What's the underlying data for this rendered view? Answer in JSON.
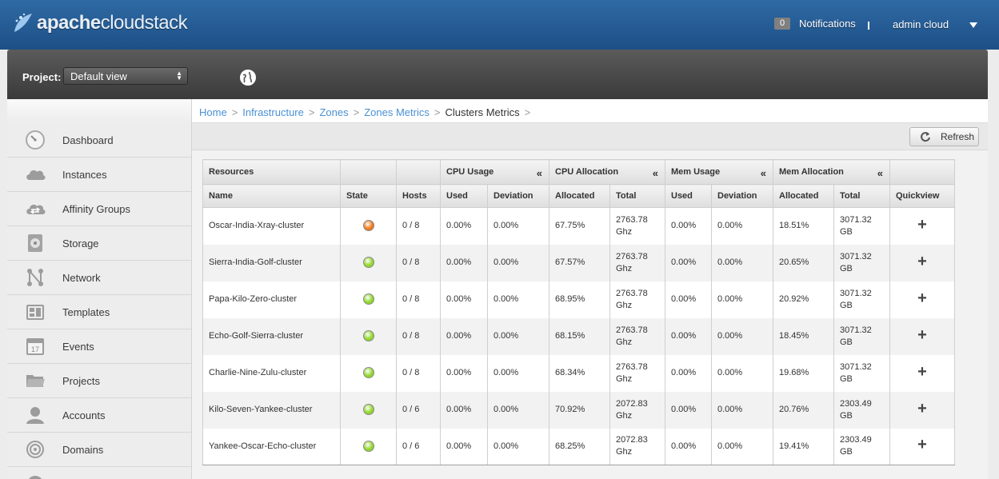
{
  "brand": {
    "logo_text_bold": "apache",
    "logo_text_rest": "cloudstack"
  },
  "header": {
    "notifications_count": "0",
    "notifications_label": "Notifications",
    "user_label": "admin cloud"
  },
  "project": {
    "label": "Project:",
    "selected": "Default view"
  },
  "sidebar": {
    "items": [
      {
        "label": "Dashboard",
        "icon": "dashboard-icon"
      },
      {
        "label": "Instances",
        "icon": "cloud-icon"
      },
      {
        "label": "Affinity Groups",
        "icon": "affinity-cloud-icon"
      },
      {
        "label": "Storage",
        "icon": "disk-icon"
      },
      {
        "label": "Network",
        "icon": "network-icon"
      },
      {
        "label": "Templates",
        "icon": "templates-icon"
      },
      {
        "label": "Events",
        "icon": "calendar-icon"
      },
      {
        "label": "Projects",
        "icon": "folder-icon"
      },
      {
        "label": "Accounts",
        "icon": "user-icon"
      },
      {
        "label": "Domains",
        "icon": "domains-icon"
      }
    ],
    "calendar_day": "17"
  },
  "breadcrumb": {
    "items": [
      "Home",
      "Infrastructure",
      "Zones",
      "Zones Metrics"
    ],
    "current": "Clusters Metrics",
    "separator": ">"
  },
  "toolbar": {
    "refresh_label": "Refresh"
  },
  "table": {
    "group_headers": {
      "resources": "Resources",
      "cpu_usage": "CPU Usage",
      "cpu_allocation": "CPU Allocation",
      "mem_usage": "Mem Usage",
      "mem_allocation": "Mem Allocation",
      "collapse_glyph": "«"
    },
    "columns": [
      "Name",
      "State",
      "Hosts",
      "Used",
      "Deviation",
      "Allocated",
      "Total",
      "Used",
      "Deviation",
      "Allocated",
      "Total",
      "Quickview"
    ],
    "state_colors": {
      "alert": "#f07818",
      "ok": "#8fd62a"
    },
    "rows": [
      {
        "name": "Oscar-India-Xray-cluster",
        "state": "alert",
        "hosts": "0 / 8",
        "cpu_used": "0.00%",
        "cpu_dev": "0.00%",
        "cpu_alloc": "67.75%",
        "cpu_total_1": "2763.78",
        "cpu_total_2": "Ghz",
        "mem_used": "0.00%",
        "mem_dev": "0.00%",
        "mem_alloc": "18.51%",
        "mem_total_1": "3071.32",
        "mem_total_2": "GB"
      },
      {
        "name": "Sierra-India-Golf-cluster",
        "state": "ok",
        "hosts": "0 / 8",
        "cpu_used": "0.00%",
        "cpu_dev": "0.00%",
        "cpu_alloc": "67.57%",
        "cpu_total_1": "2763.78",
        "cpu_total_2": "Ghz",
        "mem_used": "0.00%",
        "mem_dev": "0.00%",
        "mem_alloc": "20.65%",
        "mem_total_1": "3071.32",
        "mem_total_2": "GB"
      },
      {
        "name": "Papa-Kilo-Zero-cluster",
        "state": "ok",
        "hosts": "0 / 8",
        "cpu_used": "0.00%",
        "cpu_dev": "0.00%",
        "cpu_alloc": "68.95%",
        "cpu_total_1": "2763.78",
        "cpu_total_2": "Ghz",
        "mem_used": "0.00%",
        "mem_dev": "0.00%",
        "mem_alloc": "20.92%",
        "mem_total_1": "3071.32",
        "mem_total_2": "GB"
      },
      {
        "name": "Echo-Golf-Sierra-cluster",
        "state": "ok",
        "hosts": "0 / 8",
        "cpu_used": "0.00%",
        "cpu_dev": "0.00%",
        "cpu_alloc": "68.15%",
        "cpu_total_1": "2763.78",
        "cpu_total_2": "Ghz",
        "mem_used": "0.00%",
        "mem_dev": "0.00%",
        "mem_alloc": "18.45%",
        "mem_total_1": "3071.32",
        "mem_total_2": "GB"
      },
      {
        "name": "Charlie-Nine-Zulu-cluster",
        "state": "ok",
        "hosts": "0 / 8",
        "cpu_used": "0.00%",
        "cpu_dev": "0.00%",
        "cpu_alloc": "68.34%",
        "cpu_total_1": "2763.78",
        "cpu_total_2": "Ghz",
        "mem_used": "0.00%",
        "mem_dev": "0.00%",
        "mem_alloc": "19.68%",
        "mem_total_1": "3071.32",
        "mem_total_2": "GB"
      },
      {
        "name": "Kilo-Seven-Yankee-cluster",
        "state": "ok",
        "hosts": "0 / 6",
        "cpu_used": "0.00%",
        "cpu_dev": "0.00%",
        "cpu_alloc": "70.92%",
        "cpu_total_1": "2072.83",
        "cpu_total_2": "Ghz",
        "mem_used": "0.00%",
        "mem_dev": "0.00%",
        "mem_alloc": "20.76%",
        "mem_total_1": "2303.49",
        "mem_total_2": "GB"
      },
      {
        "name": "Yankee-Oscar-Echo-cluster",
        "state": "ok",
        "hosts": "0 / 6",
        "cpu_used": "0.00%",
        "cpu_dev": "0.00%",
        "cpu_alloc": "68.25%",
        "cpu_total_1": "2072.83",
        "cpu_total_2": "Ghz",
        "mem_used": "0.00%",
        "mem_dev": "0.00%",
        "mem_alloc": "19.41%",
        "mem_total_1": "2303.49",
        "mem_total_2": "GB"
      }
    ]
  }
}
